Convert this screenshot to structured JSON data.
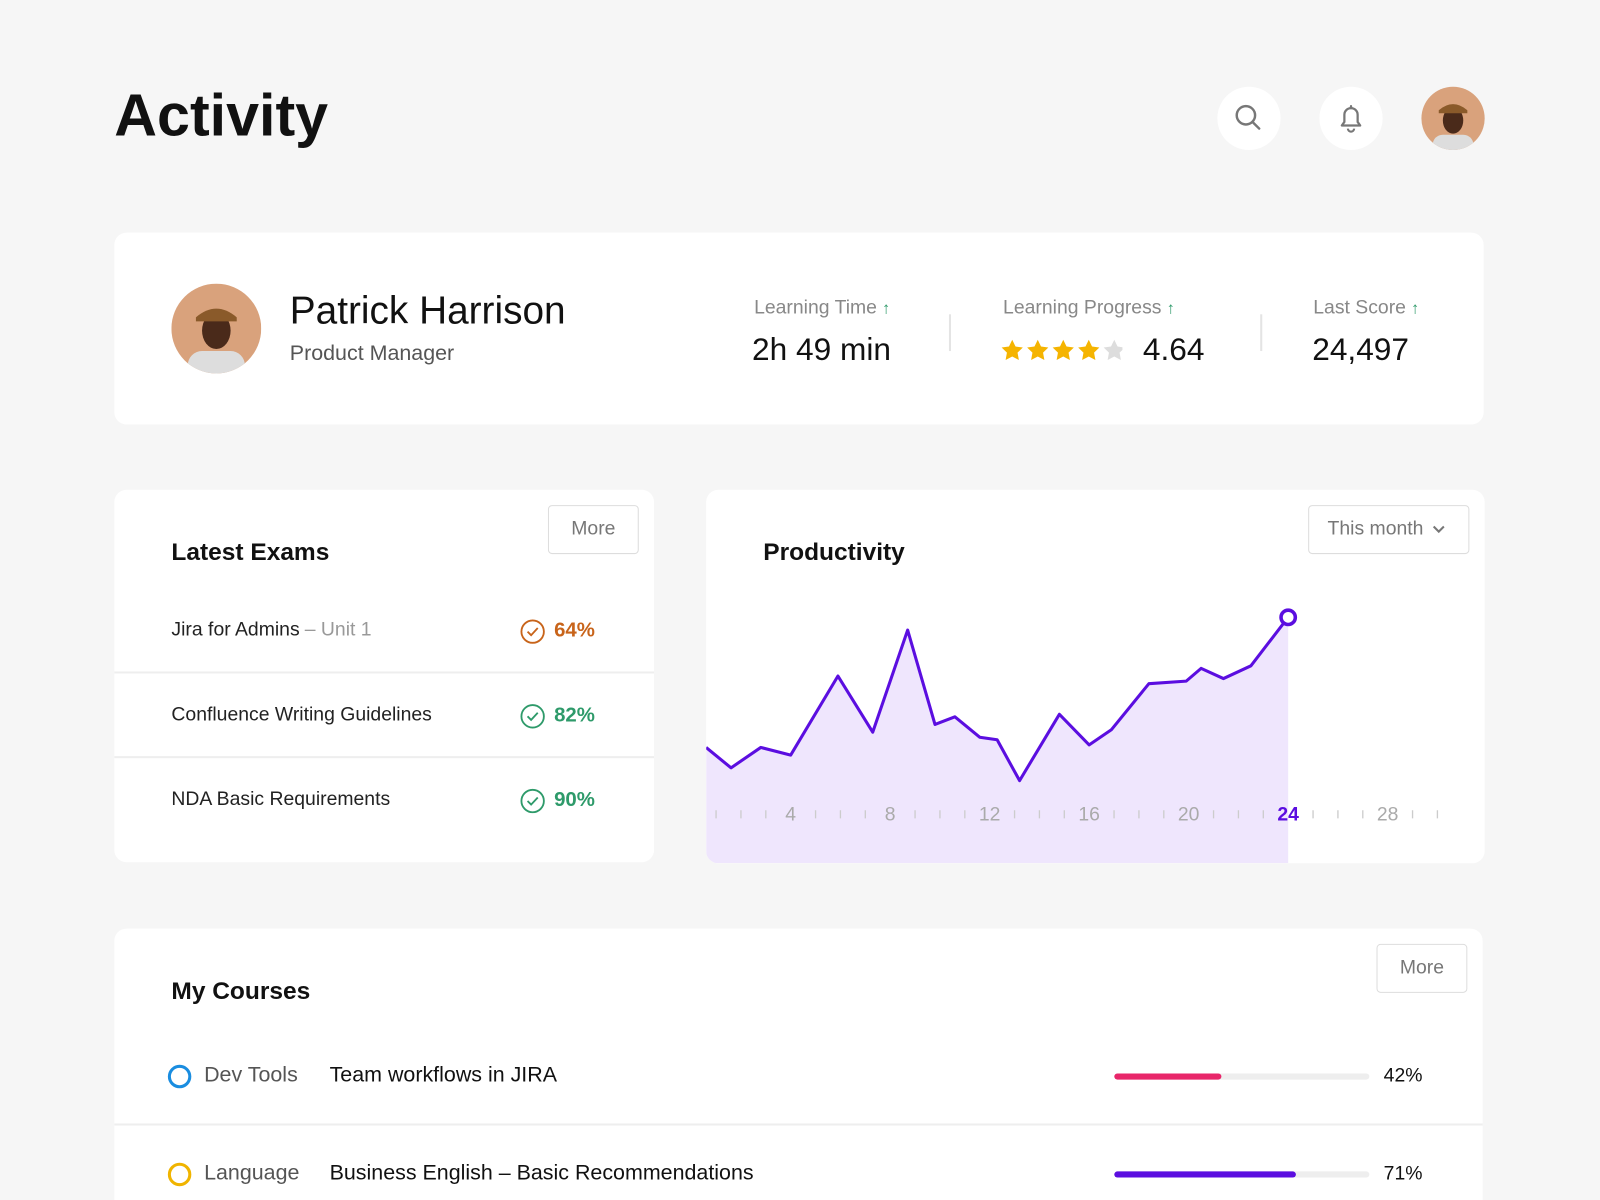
{
  "header": {
    "title": "Activity"
  },
  "profile": {
    "name": "Patrick Harrison",
    "role": "Product Manager"
  },
  "stats": [
    {
      "label": "Learning Time",
      "value": "2h 49 min"
    },
    {
      "label": "Learning Progress",
      "value": "4.64"
    },
    {
      "label": "Last Score",
      "value": "24,497"
    }
  ],
  "exams": {
    "title": "Latest Exams",
    "button": "More",
    "rows": [
      {
        "name": "Jira for Admins",
        "unit": "– Unit 1",
        "score": "64%",
        "color": "#c8641a"
      },
      {
        "name": "Confluence Writing Guidelines",
        "score": "82%",
        "color": "#2e9a6a"
      },
      {
        "name": "NDA Basic Requirements",
        "score": "90%",
        "color": "#2e9a6a"
      }
    ]
  },
  "productivity": {
    "title": "Productivity",
    "filter": "This month",
    "chart": {
      "type": "line",
      "color": "#5b0ee0",
      "fill": "#efe6fd",
      "x": [
        0.6,
        1.6,
        2.8,
        4,
        5.9,
        7.3,
        8.7,
        9.8,
        10.6,
        11.6,
        12.3,
        13.2,
        14.8,
        16,
        16.9,
        18.4,
        19.9,
        20.5,
        21.4,
        22.5,
        24
      ],
      "values": [
        45,
        37,
        45,
        42,
        73,
        51,
        91,
        54,
        57,
        49,
        48,
        32,
        58,
        46,
        52,
        70,
        71,
        76,
        72,
        77,
        96
      ],
      "xlim": [
        0.6,
        31.9
      ],
      "ylim": [
        0,
        100
      ],
      "xticks": [
        4,
        8,
        12,
        16,
        20,
        24,
        28
      ]
    }
  },
  "courses": {
    "title": "My Courses",
    "button": "More",
    "rows": [
      {
        "category": "Dev Tools",
        "category_color": "#1a8de0",
        "title": "Team workflows in JIRA",
        "progress": 42,
        "progress_label": "42%",
        "bar_color": "#e8266a"
      },
      {
        "category": "Language",
        "category_color": "#f0b400",
        "title": "Business English – Basic Recommendations",
        "progress": 71,
        "progress_label": "71%",
        "bar_color": "#5b0ee0"
      }
    ]
  }
}
